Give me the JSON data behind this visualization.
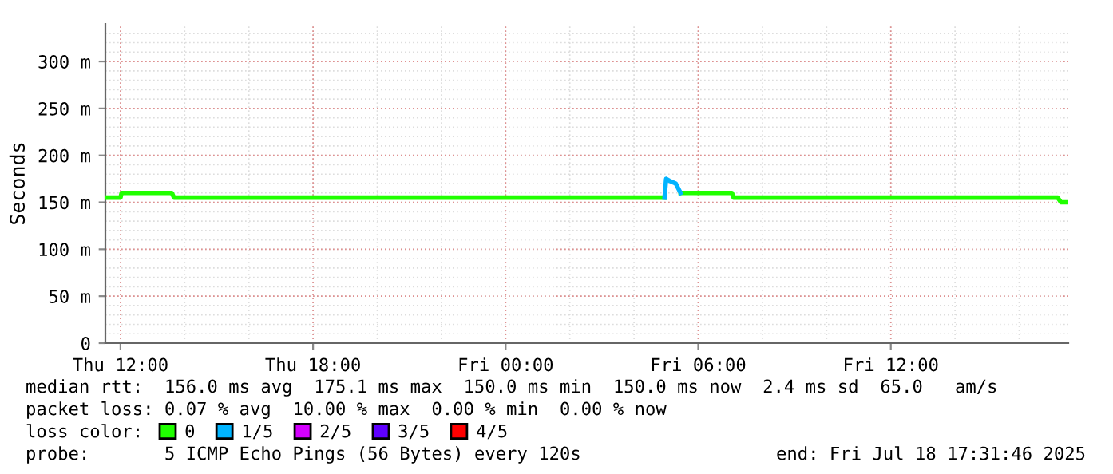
{
  "chart_data": {
    "type": "line",
    "ylabel": "Seconds",
    "xlim": [
      "2025-07-17T11:31:46",
      "2025-07-18T17:31:46"
    ],
    "xticks": [
      {
        "value": "2025-07-17T12:00",
        "label": "Thu 12:00"
      },
      {
        "value": "2025-07-17T18:00",
        "label": "Thu 18:00"
      },
      {
        "value": "2025-07-18T00:00",
        "label": "Fri 00:00"
      },
      {
        "value": "2025-07-18T06:00",
        "label": "Fri 06:00"
      },
      {
        "value": "2025-07-18T12:00",
        "label": "Fri 12:00"
      }
    ],
    "ylim": [
      0,
      340
    ],
    "yticks": [
      0,
      {
        "value": 50,
        "label": "50 m"
      },
      {
        "value": 100,
        "label": "100 m"
      },
      {
        "value": 150,
        "label": "150 m"
      },
      {
        "value": 200,
        "label": "200 m"
      },
      {
        "value": 250,
        "label": "250 m"
      },
      {
        "value": 300,
        "label": "300 m"
      }
    ],
    "grid": true,
    "legend": "bottom",
    "legend_title": "loss color:",
    "series": [
      {
        "name": "0",
        "color": "#20ff00",
        "x": [
          "2025-07-17T11:32",
          "2025-07-17T12:00",
          "2025-07-17T12:02",
          "2025-07-17T13:36",
          "2025-07-17T13:40",
          "2025-07-18T04:57",
          "2025-07-18T05:00",
          "2025-07-18T05:24",
          "2025-07-18T05:27",
          "2025-07-18T07:03",
          "2025-07-18T07:06",
          "2025-07-18T17:12",
          "2025-07-18T17:18",
          "2025-07-18T17:31"
        ],
        "values": [
          155,
          155,
          160,
          160,
          155,
          155,
          null,
          null,
          160,
          160,
          155,
          155,
          150,
          150
        ]
      },
      {
        "name": "1/5",
        "color": "#00b4ff",
        "x": [
          "2025-07-18T04:57",
          "2025-07-18T05:00",
          "2025-07-18T05:06",
          "2025-07-18T05:18",
          "2025-07-18T05:27"
        ],
        "values": [
          155,
          175,
          173,
          170,
          160
        ]
      },
      {
        "name": "2/5",
        "color": "#d400ff"
      },
      {
        "name": "3/5",
        "color": "#5f00ff"
      },
      {
        "name": "4/5",
        "color": "#ff0000"
      }
    ],
    "annotations": [
      "median rtt:  156.0 ms avg  175.1 ms max  150.0 ms min  150.0 ms now  2.4 ms sd  65.0   am/s",
      "packet loss: 0.07 % avg  10.00 % max  0.00 % min  0.00 % now",
      "probe:       5 ICMP Echo Pings (56 Bytes) every 120s",
      "end: Fri Jul 18 17:31:46 2025"
    ]
  }
}
